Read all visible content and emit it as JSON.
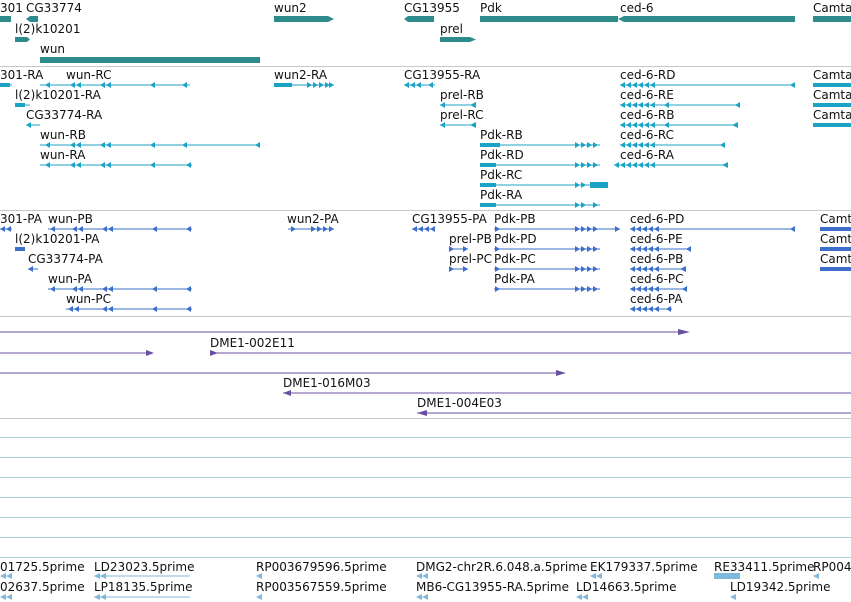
{
  "colors": {
    "gene": "#2e8b8b",
    "transcript": "#1ba3c6",
    "protein": "#3b6fc9",
    "clone": "#6a4fa0",
    "est": "#7fb8d8",
    "divider": "#c8c8c8",
    "empty_track_line": "#a9cfd6"
  },
  "genes": [
    {
      "label": "301"
    },
    {
      "label": "CG33774"
    },
    {
      "label": "wun2"
    },
    {
      "label": "CG13955"
    },
    {
      "label": "Pdk"
    },
    {
      "label": "ced-6"
    },
    {
      "label": "Camta"
    },
    {
      "label": "l(2)k10201"
    },
    {
      "label": "prel"
    },
    {
      "label": "wun"
    }
  ],
  "transcripts": [
    {
      "label": "301-RA"
    },
    {
      "label": "wun-RC"
    },
    {
      "label": "wun2-RA"
    },
    {
      "label": "CG13955-RA"
    },
    {
      "label": "ced-6-RD"
    },
    {
      "label": "Camta"
    },
    {
      "label": "l(2)k10201-RA"
    },
    {
      "label": "prel-RB"
    },
    {
      "label": "ced-6-RE"
    },
    {
      "label": "Camta"
    },
    {
      "label": "CG33774-RA"
    },
    {
      "label": "prel-RC"
    },
    {
      "label": "ced-6-RB"
    },
    {
      "label": "Camta"
    },
    {
      "label": "wun-RB"
    },
    {
      "label": "Pdk-RB"
    },
    {
      "label": "ced-6-RC"
    },
    {
      "label": "wun-RA"
    },
    {
      "label": "Pdk-RD"
    },
    {
      "label": "ced-6-RA"
    },
    {
      "label": "Pdk-RC"
    },
    {
      "label": "Pdk-RA"
    }
  ],
  "proteins": [
    {
      "label": "301-PA"
    },
    {
      "label": "wun-PB"
    },
    {
      "label": "wun2-PA"
    },
    {
      "label": "CG13955-PA"
    },
    {
      "label": "Pdk-PB"
    },
    {
      "label": "ced-6-PD"
    },
    {
      "label": "Camt"
    },
    {
      "label": "l(2)k10201-PA"
    },
    {
      "label": "prel-PB"
    },
    {
      "label": "Pdk-PD"
    },
    {
      "label": "ced-6-PE"
    },
    {
      "label": "Camt"
    },
    {
      "label": "CG33774-PA"
    },
    {
      "label": "prel-PC"
    },
    {
      "label": "Pdk-PC"
    },
    {
      "label": "ced-6-PB"
    },
    {
      "label": "Camt"
    },
    {
      "label": "wun-PA"
    },
    {
      "label": "Pdk-PA"
    },
    {
      "label": "ced-6-PC"
    },
    {
      "label": "wun-PC"
    },
    {
      "label": "ced-6-PA"
    }
  ],
  "clones": [
    {
      "label": "DME1-002E11"
    },
    {
      "label": "DME1-016M03"
    },
    {
      "label": "DME1-004E03"
    }
  ],
  "ests": [
    {
      "label": "01725.5prime"
    },
    {
      "label": "LD23023.5prime"
    },
    {
      "label": "RP003679596.5prime"
    },
    {
      "label": "DMG2-chr2R.6.048.a.5prime"
    },
    {
      "label": "EK179337.5prime"
    },
    {
      "label": "RE33411.5prime"
    },
    {
      "label": "RP004"
    },
    {
      "label": "02637.5prime"
    },
    {
      "label": "LP18135.5prime"
    },
    {
      "label": "RP003567559.5prime"
    },
    {
      "label": "MB6-CG13955-RA.5prime"
    },
    {
      "label": "LD14663.5prime"
    },
    {
      "label": "LD19342.5prime"
    }
  ]
}
